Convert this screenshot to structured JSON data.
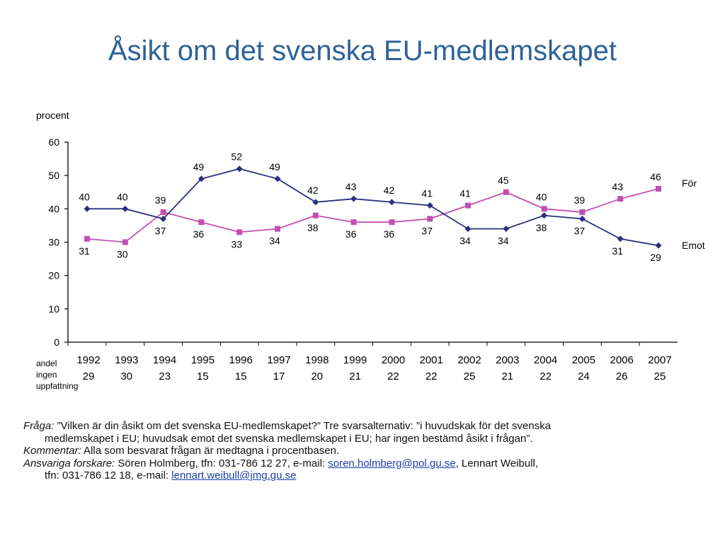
{
  "title": "Åsikt om det svenska EU-medlemskapet",
  "chart_data": {
    "type": "line",
    "ylabel": "procent",
    "ylim": [
      0,
      60
    ],
    "yticks": [
      0,
      10,
      20,
      30,
      40,
      50,
      60
    ],
    "x": [
      "1992",
      "1993",
      "1994",
      "1995",
      "1996",
      "1997",
      "1998",
      "1999",
      "2000",
      "2001",
      "2002",
      "2003",
      "2004",
      "2005",
      "2006",
      "2007"
    ],
    "series": [
      {
        "name": "För",
        "color": "#c24fb0",
        "marker": "square",
        "values": [
          31,
          30,
          39,
          36,
          33,
          34,
          38,
          36,
          36,
          37,
          41,
          45,
          40,
          39,
          43,
          46
        ]
      },
      {
        "name": "Emot",
        "color": "#2b2f7e",
        "marker": "diamond",
        "values": [
          40,
          40,
          37,
          49,
          52,
          49,
          42,
          43,
          42,
          41,
          34,
          34,
          38,
          37,
          31,
          29
        ]
      }
    ],
    "no_opinion_row": {
      "label_lines": [
        "andel",
        "ingen",
        "uppfattning"
      ],
      "values": [
        "29",
        "30",
        "23",
        "15",
        "15",
        "17",
        "20",
        "21",
        "22",
        "22",
        "25",
        "21",
        "22",
        "24",
        "26",
        "25"
      ]
    },
    "grid": false,
    "legend": "right, labels at line ends"
  },
  "notes": {
    "question_label": "Fråga:",
    "question_text": " ”Vilken är din åsikt om det svenska EU-medlemskapet?” Tre svarsalternativ: ”i huvudskak för det svenska",
    "question_text_2": "medlemskapet i EU; huvudsak emot det svenska medlemskapet i EU; har ingen bestämd åsikt i frågan”.",
    "comment_label": "Kommentar:",
    "comment_text": " Alla som besvarat frågan är medtagna i procentbasen.",
    "researchers_label": "Ansvariga forskare:",
    "researchers_text": " Sören Holmberg, tfn: 031-786 12 27, e-mail: ",
    "email_1": "soren.holmberg@pol.gu.se",
    "researchers_text_2": ", Lennart Weibull,",
    "researchers_text_3": "tfn: 031-786 12 18, e-mail: ",
    "email_2": "lennart.weibull@jmg.gu.se"
  }
}
